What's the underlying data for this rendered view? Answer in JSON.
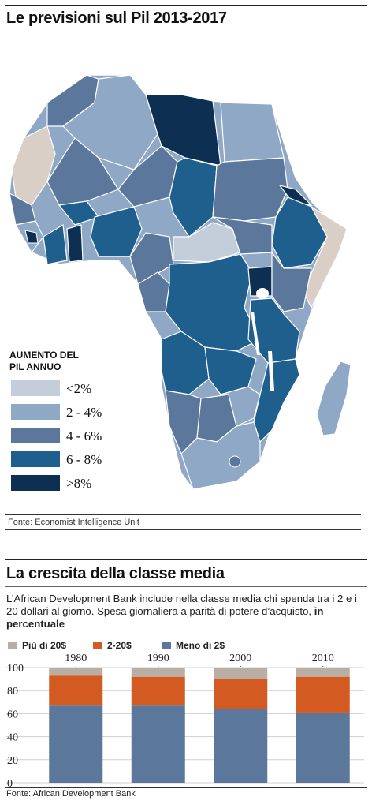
{
  "map_section": {
    "title": "Le previsioni sul Pil 2013-2017",
    "legend_title_line1": "AUMENTO DEL",
    "legend_title_line2": "PIL ANNUO",
    "legend": [
      {
        "label": "<2%",
        "color": "#c4cedb"
      },
      {
        "label": "2 - 4%",
        "color": "#8fa8c6"
      },
      {
        "label": "4 - 6%",
        "color": "#5b789c"
      },
      {
        "label": "6 - 8%",
        "color": "#1f5f8e"
      },
      {
        "label": ">8%",
        "color": "#0c2f52"
      }
    ],
    "no_data_color": "#d9cfc7",
    "source": "Fonte: Economist Intelligence Unit"
  },
  "chart_section": {
    "title": "La crescita della classe media",
    "intro_text": "L’African Development Bank include nella classe media chi spenda tra i 2 e i 20 dollari al giorno. Spesa giornaliera a parità di potere d’acquisto, ",
    "intro_bold": "in percentuale",
    "source": "Fonte: African Development Bank"
  },
  "chart_data": {
    "type": "bar",
    "stacked": true,
    "categories": [
      "1980",
      "1990",
      "2000",
      "2010"
    ],
    "series": [
      {
        "name": "Meno di 2$",
        "color": "#5b789c",
        "values": [
          67,
          67,
          64,
          61
        ]
      },
      {
        "name": "2-20$",
        "color": "#d35a21",
        "values": [
          26,
          25,
          26,
          31
        ]
      },
      {
        "name": "Più di 20$",
        "color": "#b9aea3",
        "values": [
          7,
          8,
          10,
          8
        ]
      }
    ],
    "legend_order": [
      "Più di 20$",
      "2-20$",
      "Meno di 2$"
    ],
    "ylim": [
      0,
      100
    ],
    "yticks": [
      0,
      20,
      40,
      60,
      80,
      100
    ],
    "grid": true,
    "legend_position": "top"
  }
}
